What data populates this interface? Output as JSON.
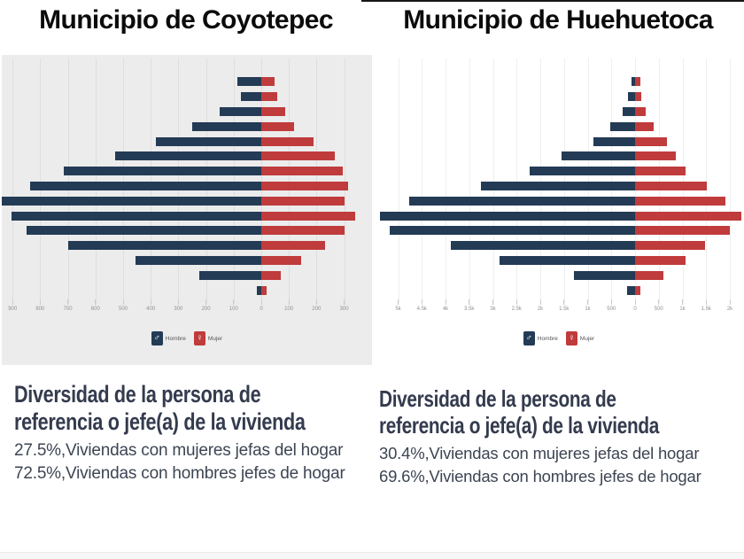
{
  "panels": [
    {
      "title": "Municipio de Coyotepec",
      "info_heading_line1": "Diversidad de la persona de",
      "info_heading_line2": "referencia o jefe(a) de la vivienda",
      "info_line1": "27.5%,Viviendas con mujeres jefas del hogar",
      "info_line2": "72.5%,Viviendas con hombres jefes de hogar"
    },
    {
      "title": "Municipio de Huehuetoca",
      "info_heading_line1": "Diversidad de la persona de",
      "info_heading_line2": "referencia o jefe(a) de la vivienda",
      "info_line1": "30.4%,Viviendas con mujeres jefas del hogar",
      "info_line2": "69.6%,Viviendas con hombres jefes de hogar"
    }
  ],
  "legend": {
    "male_label": "Hombre",
    "female_label": "Mujer",
    "male_symbol": "♂",
    "female_symbol": "♀"
  },
  "colors": {
    "male": "#233b55",
    "female": "#c03b3c",
    "left_panel_bg": "#ececec",
    "right_panel_bg": "#ffffff",
    "heading_text": "#343b4e",
    "body_text": "#3d4553",
    "axis_label": "#909090"
  },
  "chart_data": [
    {
      "type": "bar",
      "subtype": "population_pyramid",
      "title": "Municipio de Coyotepec",
      "orientation": "horizontal",
      "xlabel": "",
      "ylabel": "",
      "grid": true,
      "legend_position": "bottom-center",
      "legend_entries": [
        "Hombre",
        "Mujer"
      ],
      "n_rows": 15,
      "age_group_labels_visible": false,
      "x_tick_labels": [
        "900",
        "800",
        "700",
        "600",
        "500",
        "400",
        "300",
        "200",
        "100",
        "0",
        "100",
        "200",
        "300"
      ],
      "x_tick_values": [
        -900,
        -800,
        -700,
        -600,
        -500,
        -400,
        -300,
        -200,
        -100,
        0,
        100,
        200,
        300
      ],
      "series": [
        {
          "name": "Hombre",
          "direction": "left",
          "values": [
            85,
            75,
            150,
            250,
            380,
            530,
            715,
            835,
            940,
            905,
            850,
            700,
            455,
            225,
            15
          ]
        },
        {
          "name": "Mujer",
          "direction": "right",
          "values": [
            48,
            58,
            85,
            118,
            190,
            265,
            295,
            315,
            300,
            340,
            300,
            230,
            145,
            70,
            20
          ]
        }
      ]
    },
    {
      "type": "bar",
      "subtype": "population_pyramid",
      "title": "Municipio de Huehuetoca",
      "orientation": "horizontal",
      "xlabel": "",
      "ylabel": "",
      "grid": true,
      "legend_position": "bottom-center",
      "legend_entries": [
        "Hombre",
        "Mujer"
      ],
      "n_rows": 15,
      "age_group_labels_visible": false,
      "x_tick_labels": [
        "5k",
        "4.5k",
        "4k",
        "3.5k",
        "3k",
        "2.5k",
        "2k",
        "1.5k",
        "1k",
        "500",
        "0",
        "500",
        "1k",
        "1.5k",
        "2k"
      ],
      "x_tick_values": [
        -5000,
        -4500,
        -4000,
        -3500,
        -3000,
        -2500,
        -2000,
        -1500,
        -1000,
        -500,
        0,
        500,
        1000,
        1500,
        2000
      ],
      "series": [
        {
          "name": "Hombre",
          "direction": "left",
          "values": [
            80,
            155,
            270,
            530,
            880,
            1545,
            2230,
            3260,
            4765,
            5390,
            5180,
            3895,
            2855,
            1295,
            175
          ]
        },
        {
          "name": "Mujer",
          "direction": "right",
          "values": [
            120,
            135,
            215,
            385,
            665,
            865,
            1060,
            1505,
            1910,
            2235,
            1995,
            1475,
            1060,
            590,
            120
          ]
        }
      ]
    }
  ]
}
